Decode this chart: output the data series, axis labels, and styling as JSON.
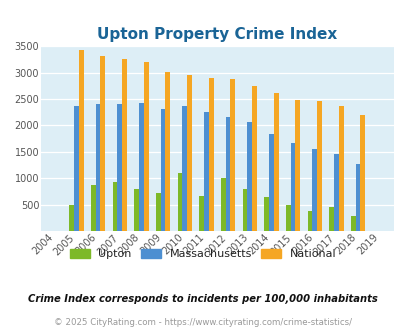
{
  "title": "Upton Property Crime Index",
  "title_color": "#1a6496",
  "years": [
    2004,
    2005,
    2006,
    2007,
    2008,
    2009,
    2010,
    2011,
    2012,
    2013,
    2014,
    2015,
    2016,
    2017,
    2018,
    2019
  ],
  "upton": [
    0,
    490,
    880,
    930,
    790,
    720,
    1100,
    660,
    1000,
    790,
    640,
    490,
    370,
    450,
    280,
    0
  ],
  "massachusetts": [
    0,
    2370,
    2400,
    2400,
    2430,
    2310,
    2360,
    2260,
    2160,
    2060,
    1840,
    1670,
    1550,
    1450,
    1260,
    0
  ],
  "national": [
    0,
    3430,
    3320,
    3250,
    3200,
    3020,
    2960,
    2900,
    2870,
    2750,
    2610,
    2490,
    2460,
    2370,
    2200,
    0
  ],
  "upton_color": "#7db928",
  "mass_color": "#4d8fd1",
  "national_color": "#f5a623",
  "bg_color": "#ddeef6",
  "ylim": [
    0,
    3500
  ],
  "yticks": [
    0,
    500,
    1000,
    1500,
    2000,
    2500,
    3000,
    3500
  ],
  "footnote": "Crime Index corresponds to incidents per 100,000 inhabitants",
  "footnote2": "© 2025 CityRating.com - https://www.cityrating.com/crime-statistics/",
  "bar_width": 0.22
}
